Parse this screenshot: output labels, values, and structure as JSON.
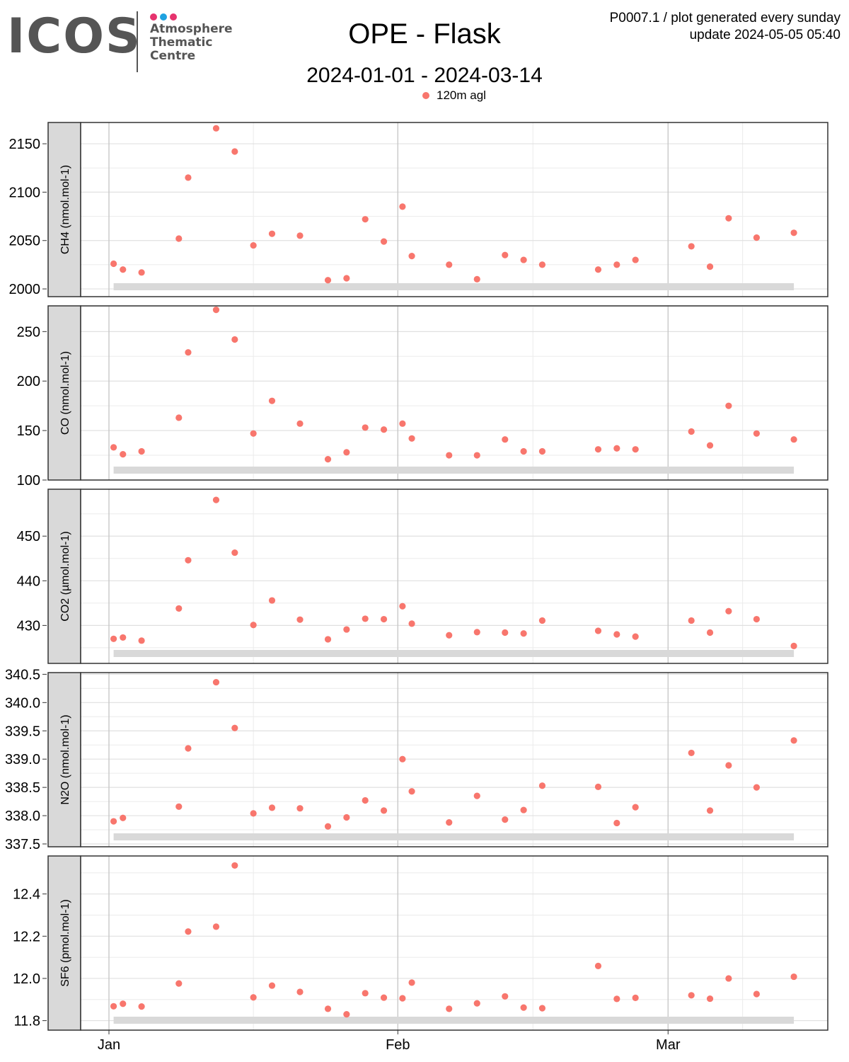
{
  "logo": {
    "text": "ICOS",
    "line1": "Atmosphere",
    "line2": "Thematic",
    "line3": "Centre",
    "dot_colors": [
      "#e6336e",
      "#1fa2e0",
      "#e6336e"
    ]
  },
  "header": {
    "title": "OPE - Flask",
    "subtitle": "2024-01-01 - 2024-03-14",
    "meta_line1": "P0007.1 / plot generated every sunday",
    "meta_line2": "update  2024-05-05 05:40"
  },
  "legend": {
    "label": "120m agl",
    "color": "#f8766d"
  },
  "chart_data": {
    "type": "scatter",
    "point_color": "#f8766d",
    "xlim": [
      "2024-01-01",
      "2024-03-17"
    ],
    "x_ticks": [
      {
        "date": "2024-01-01",
        "label": "Jan"
      },
      {
        "date": "2024-02-01",
        "label": "Feb"
      },
      {
        "date": "2024-03-01",
        "label": "Mar"
      }
    ],
    "grid": true,
    "panels": [
      {
        "ylabel": "CH4 (nmol.mol-1)",
        "ylim": [
          1992,
          2172
        ],
        "y_ticks": [
          {
            "v": 2000,
            "label": "2000"
          },
          {
            "v": 2050,
            "label": "2050"
          },
          {
            "v": 2100,
            "label": "2100"
          },
          {
            "v": 2150,
            "label": "2150"
          }
        ],
        "points": [
          [
            "2024-01-01 12:00",
            2026
          ],
          [
            "2024-01-02 12:00",
            2020
          ],
          [
            "2024-01-04 12:00",
            2017
          ],
          [
            "2024-01-08 12:00",
            2052
          ],
          [
            "2024-01-09 12:00",
            2115
          ],
          [
            "2024-01-12 12:00",
            2166
          ],
          [
            "2024-01-14 12:00",
            2142
          ],
          [
            "2024-01-16 12:00",
            2045
          ],
          [
            "2024-01-18 12:00",
            2057
          ],
          [
            "2024-01-21 12:00",
            2055
          ],
          [
            "2024-01-24 12:00",
            2009
          ],
          [
            "2024-01-26 12:00",
            2011
          ],
          [
            "2024-01-28 12:00",
            2072
          ],
          [
            "2024-01-30 12:00",
            2049
          ],
          [
            "2024-02-01 12:00",
            2085
          ],
          [
            "2024-02-02 12:00",
            2034
          ],
          [
            "2024-02-06 12:00",
            2025
          ],
          [
            "2024-02-09 12:00",
            2010
          ],
          [
            "2024-02-12 12:00",
            2035
          ],
          [
            "2024-02-14 12:00",
            2030
          ],
          [
            "2024-02-16 12:00",
            2025
          ],
          [
            "2024-02-22 12:00",
            2020
          ],
          [
            "2024-02-24 12:00",
            2025
          ],
          [
            "2024-02-26 12:00",
            2030
          ],
          [
            "2024-03-03 12:00",
            2044
          ],
          [
            "2024-03-05 12:00",
            2023
          ],
          [
            "2024-03-07 12:00",
            2073
          ],
          [
            "2024-03-10 12:00",
            2053
          ],
          [
            "2024-03-14 12:00",
            2058
          ]
        ]
      },
      {
        "ylabel": "CO (nmol.mol-1)",
        "ylim": [
          100,
          276
        ],
        "y_ticks": [
          {
            "v": 100,
            "label": "100"
          },
          {
            "v": 150,
            "label": "150"
          },
          {
            "v": 200,
            "label": "200"
          },
          {
            "v": 250,
            "label": "250"
          }
        ],
        "points": [
          [
            "2024-01-01 12:00",
            133
          ],
          [
            "2024-01-02 12:00",
            126
          ],
          [
            "2024-01-04 12:00",
            129
          ],
          [
            "2024-01-08 12:00",
            163
          ],
          [
            "2024-01-09 12:00",
            229
          ],
          [
            "2024-01-12 12:00",
            272
          ],
          [
            "2024-01-14 12:00",
            242
          ],
          [
            "2024-01-16 12:00",
            147
          ],
          [
            "2024-01-18 12:00",
            180
          ],
          [
            "2024-01-21 12:00",
            157
          ],
          [
            "2024-01-24 12:00",
            121
          ],
          [
            "2024-01-26 12:00",
            128
          ],
          [
            "2024-01-28 12:00",
            153
          ],
          [
            "2024-01-30 12:00",
            151
          ],
          [
            "2024-02-01 12:00",
            157
          ],
          [
            "2024-02-02 12:00",
            142
          ],
          [
            "2024-02-06 12:00",
            125
          ],
          [
            "2024-02-09 12:00",
            125
          ],
          [
            "2024-02-12 12:00",
            141
          ],
          [
            "2024-02-14 12:00",
            129
          ],
          [
            "2024-02-16 12:00",
            129
          ],
          [
            "2024-02-22 12:00",
            131
          ],
          [
            "2024-02-24 12:00",
            132
          ],
          [
            "2024-02-26 12:00",
            131
          ],
          [
            "2024-03-03 12:00",
            149
          ],
          [
            "2024-03-05 12:00",
            135
          ],
          [
            "2024-03-07 12:00",
            175
          ],
          [
            "2024-03-10 12:00",
            147
          ],
          [
            "2024-03-14 12:00",
            141
          ]
        ]
      },
      {
        "ylabel": "CO2 (µmol.mol-1)",
        "ylim": [
          421.5,
          460.5
        ],
        "y_ticks": [
          {
            "v": 430,
            "label": "430"
          },
          {
            "v": 440,
            "label": "440"
          },
          {
            "v": 450,
            "label": "450"
          }
        ],
        "points": [
          [
            "2024-01-01 12:00",
            427.0
          ],
          [
            "2024-01-02 12:00",
            427.3
          ],
          [
            "2024-01-04 12:00",
            426.6
          ],
          [
            "2024-01-08 12:00",
            433.8
          ],
          [
            "2024-01-09 12:00",
            444.6
          ],
          [
            "2024-01-12 12:00",
            458.1
          ],
          [
            "2024-01-14 12:00",
            446.3
          ],
          [
            "2024-01-16 12:00",
            430.1
          ],
          [
            "2024-01-18 12:00",
            435.6
          ],
          [
            "2024-01-21 12:00",
            431.3
          ],
          [
            "2024-01-24 12:00",
            426.9
          ],
          [
            "2024-01-26 12:00",
            429.1
          ],
          [
            "2024-01-28 12:00",
            431.5
          ],
          [
            "2024-01-30 12:00",
            431.4
          ],
          [
            "2024-02-01 12:00",
            434.3
          ],
          [
            "2024-02-02 12:00",
            430.4
          ],
          [
            "2024-02-06 12:00",
            427.8
          ],
          [
            "2024-02-09 12:00",
            428.5
          ],
          [
            "2024-02-12 12:00",
            428.4
          ],
          [
            "2024-02-14 12:00",
            428.2
          ],
          [
            "2024-02-16 12:00",
            431.1
          ],
          [
            "2024-02-22 12:00",
            428.8
          ],
          [
            "2024-02-24 12:00",
            428.0
          ],
          [
            "2024-02-26 12:00",
            427.5
          ],
          [
            "2024-03-03 12:00",
            431.1
          ],
          [
            "2024-03-05 12:00",
            428.4
          ],
          [
            "2024-03-07 12:00",
            433.2
          ],
          [
            "2024-03-10 12:00",
            431.4
          ],
          [
            "2024-03-14 12:00",
            425.4
          ]
        ]
      },
      {
        "ylabel": "N2O (nmol.mol-1)",
        "ylim": [
          337.45,
          340.53
        ],
        "y_ticks": [
          {
            "v": 337.5,
            "label": "337.5"
          },
          {
            "v": 338.0,
            "label": "338.0"
          },
          {
            "v": 338.5,
            "label": "338.5"
          },
          {
            "v": 339.0,
            "label": "339.0"
          },
          {
            "v": 339.5,
            "label": "339.5"
          },
          {
            "v": 340.0,
            "label": "340.0"
          },
          {
            "v": 340.5,
            "label": "340.5"
          }
        ],
        "points": [
          [
            "2024-01-01 12:00",
            337.9
          ],
          [
            "2024-01-02 12:00",
            337.96
          ],
          [
            "2024-01-08 12:00",
            338.16
          ],
          [
            "2024-01-09 12:00",
            339.19
          ],
          [
            "2024-01-12 12:00",
            340.36
          ],
          [
            "2024-01-14 12:00",
            339.55
          ],
          [
            "2024-01-16 12:00",
            338.04
          ],
          [
            "2024-01-18 12:00",
            338.14
          ],
          [
            "2024-01-21 12:00",
            338.13
          ],
          [
            "2024-01-24 12:00",
            337.81
          ],
          [
            "2024-01-26 12:00",
            337.97
          ],
          [
            "2024-01-28 12:00",
            338.27
          ],
          [
            "2024-01-30 12:00",
            338.09
          ],
          [
            "2024-02-01 12:00",
            339.0
          ],
          [
            "2024-02-02 12:00",
            338.43
          ],
          [
            "2024-02-06 12:00",
            337.88
          ],
          [
            "2024-02-09 12:00",
            338.35
          ],
          [
            "2024-02-12 12:00",
            337.93
          ],
          [
            "2024-02-14 12:00",
            338.1
          ],
          [
            "2024-02-16 12:00",
            338.53
          ],
          [
            "2024-02-22 12:00",
            338.51
          ],
          [
            "2024-02-24 12:00",
            337.87
          ],
          [
            "2024-02-26 12:00",
            338.15
          ],
          [
            "2024-03-03 12:00",
            339.11
          ],
          [
            "2024-03-05 12:00",
            338.09
          ],
          [
            "2024-03-07 12:00",
            338.89
          ],
          [
            "2024-03-10 12:00",
            338.5
          ],
          [
            "2024-03-14 12:00",
            339.33
          ]
        ]
      },
      {
        "ylabel": "SF6 (pmol.mol-1)",
        "ylim": [
          11.755,
          12.58
        ],
        "y_ticks": [
          {
            "v": 11.8,
            "label": "11.8"
          },
          {
            "v": 12.0,
            "label": "12.0"
          },
          {
            "v": 12.2,
            "label": "12.2"
          },
          {
            "v": 12.4,
            "label": "12.4"
          }
        ],
        "points": [
          [
            "2024-01-01 12:00",
            11.868
          ],
          [
            "2024-01-02 12:00",
            11.88
          ],
          [
            "2024-01-04 12:00",
            11.867
          ],
          [
            "2024-01-08 12:00",
            11.976
          ],
          [
            "2024-01-09 12:00",
            12.222
          ],
          [
            "2024-01-12 12:00",
            12.245
          ],
          [
            "2024-01-14 12:00",
            12.535
          ],
          [
            "2024-01-16 12:00",
            11.91
          ],
          [
            "2024-01-18 12:00",
            11.966
          ],
          [
            "2024-01-21 12:00",
            11.936
          ],
          [
            "2024-01-24 12:00",
            11.856
          ],
          [
            "2024-01-26 12:00",
            11.83
          ],
          [
            "2024-01-28 12:00",
            11.93
          ],
          [
            "2024-01-30 12:00",
            11.909
          ],
          [
            "2024-02-01 12:00",
            11.906
          ],
          [
            "2024-02-02 12:00",
            11.98
          ],
          [
            "2024-02-06 12:00",
            11.856
          ],
          [
            "2024-02-09 12:00",
            11.882
          ],
          [
            "2024-02-12 12:00",
            11.915
          ],
          [
            "2024-02-14 12:00",
            11.862
          ],
          [
            "2024-02-16 12:00",
            11.859
          ],
          [
            "2024-02-22 12:00",
            12.059
          ],
          [
            "2024-02-24 12:00",
            11.903
          ],
          [
            "2024-02-26 12:00",
            11.908
          ],
          [
            "2024-03-03 12:00",
            11.92
          ],
          [
            "2024-03-05 12:00",
            11.904
          ],
          [
            "2024-03-07 12:00",
            12.0
          ],
          [
            "2024-03-10 12:00",
            11.926
          ],
          [
            "2024-03-14 12:00",
            12.008
          ]
        ]
      }
    ]
  }
}
